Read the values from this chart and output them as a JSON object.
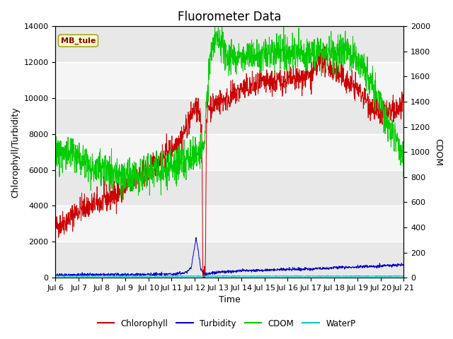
{
  "title": "Fluorometer Data",
  "xlabel": "Time",
  "ylabel_left": "Chlorophyll/Turbidity",
  "ylabel_right": "CDOM",
  "ylim_left": [
    0,
    14000
  ],
  "ylim_right": [
    0,
    2000
  ],
  "xlim": [
    0,
    15
  ],
  "xtick_labels": [
    "Jul 6",
    "Jul 7",
    "Jul 8",
    "Jul 9",
    "Jul 10",
    "Jul 11",
    "Jul 12",
    "Jul 13",
    "Jul 14",
    "Jul 15",
    "Jul 16",
    "Jul 17",
    "Jul 18",
    "Jul 19",
    "Jul 20",
    "Jul 21"
  ],
  "annotation_text": "MB_tule",
  "annotation_box_color": "#ffffcc",
  "annotation_box_edge": "#999900",
  "bg_color": "#f0f0f0",
  "band_colors": [
    "#e8e8e8",
    "#f5f5f5"
  ],
  "legend_entries": [
    "Chlorophyll",
    "Turbidity",
    "CDOM",
    "WaterP"
  ],
  "legend_colors": [
    "#cc0000",
    "#0000cc",
    "#00cc00",
    "#00cccc"
  ],
  "title_fontsize": 12,
  "axis_label_fontsize": 9,
  "tick_label_fontsize": 8,
  "scale_factor": 7.0
}
